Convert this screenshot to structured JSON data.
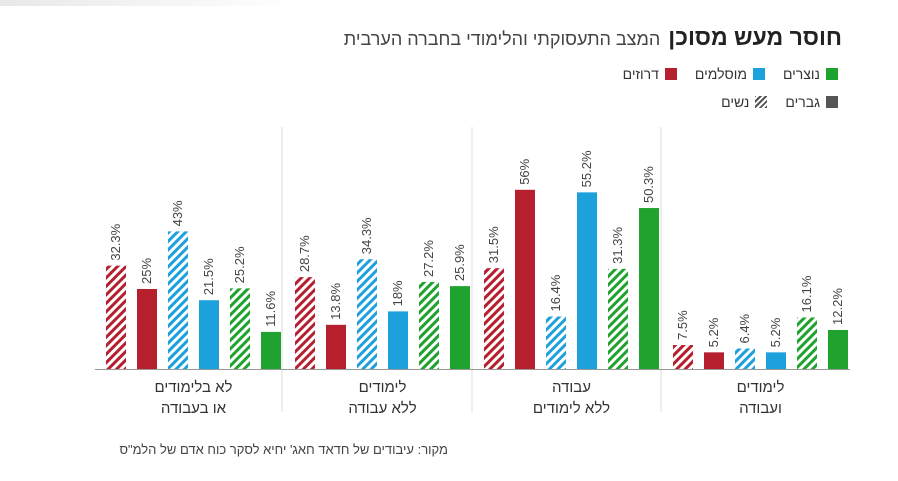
{
  "title": {
    "bold": "חוסר מעש מסוכן",
    "subtitle": "המצב התעסוקתי והלימודי בחברה הערבית"
  },
  "legend": {
    "groups": [
      {
        "label": "נוצרים",
        "color": "#1fa22e"
      },
      {
        "label": "מוסלמים",
        "color": "#1da1dd"
      },
      {
        "label": "דרוזים",
        "color": "#b51f2e"
      }
    ],
    "genders": [
      {
        "label": "גברים",
        "style": "solid"
      },
      {
        "label": "נשים",
        "style": "hatched"
      }
    ]
  },
  "source": "מקור: עיבודים של חדאד חאג' יחיא לסקר כוח אדם של הלמ\"ס",
  "chart_data": {
    "type": "bar",
    "categories": [
      [
        "לא בלימודים",
        "או בעבודה"
      ],
      [
        "לימודים",
        "ללא עבודה"
      ],
      [
        "עבודה",
        "ללא לימודים"
      ],
      [
        "לימודים",
        "ועבודה"
      ]
    ],
    "series": [
      {
        "name": "דרוזים נשים",
        "color": "#b51f2e",
        "hatched": true,
        "values": [
          32.3,
          28.7,
          31.5,
          7.5
        ],
        "labels": [
          "32.3%",
          "28.7%",
          "31.5%",
          "7.5%"
        ]
      },
      {
        "name": "דרוזים גברים",
        "color": "#b51f2e",
        "hatched": false,
        "values": [
          25,
          13.8,
          56,
          5.2
        ],
        "labels": [
          "25%",
          "13.8%",
          "56%",
          "5.2%"
        ]
      },
      {
        "name": "מוסלמים נשים",
        "color": "#1da1dd",
        "hatched": true,
        "values": [
          43,
          34.3,
          16.4,
          6.4
        ],
        "labels": [
          "43%",
          "34.3%",
          "16.4%",
          "6.4%"
        ]
      },
      {
        "name": "מוסלמים גברים",
        "color": "#1da1dd",
        "hatched": false,
        "values": [
          21.5,
          18,
          55.2,
          5.2
        ],
        "labels": [
          "21.5%",
          "18%",
          "55.2%",
          "5.2%"
        ]
      },
      {
        "name": "נוצרים נשים",
        "color": "#1fa22e",
        "hatched": true,
        "values": [
          25.2,
          27.2,
          31.3,
          16.1
        ],
        "labels": [
          "25.2%",
          "27.2%",
          "31.3%",
          "16.1%"
        ]
      },
      {
        "name": "נוצרים גברים",
        "color": "#1fa22e",
        "hatched": false,
        "values": [
          11.6,
          25.9,
          50.3,
          12.2
        ],
        "labels": [
          "11.6%",
          "25.9%",
          "50.3%",
          "12.2%"
        ]
      }
    ],
    "ylim": [
      0,
      60
    ],
    "grid": false,
    "legend_position": "top-right"
  }
}
